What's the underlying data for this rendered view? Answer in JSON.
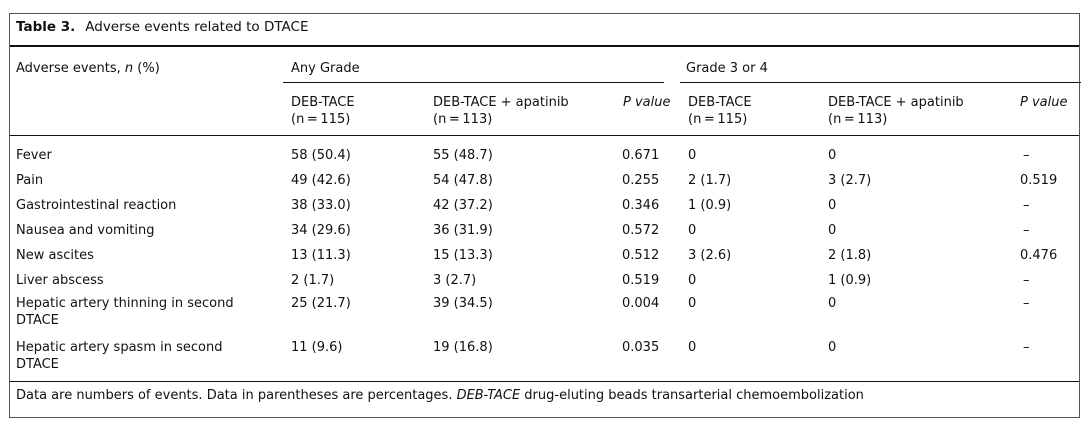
{
  "table": {
    "number": "Table 3.",
    "title": "Adverse events related to DTACE",
    "header": {
      "row_label": "Adverse events, ",
      "row_label_n": "n",
      "row_label_suffix": " (%)",
      "group_any": "Any Grade",
      "group_g34": "Grade 3 or 4",
      "col_deb": "DEB-TACE",
      "col_deb_n": "(n = 115)",
      "col_debap": "DEB-TACE + apatinib",
      "col_debap_n": "(n = 113)",
      "col_p": "P value"
    },
    "rows": [
      {
        "label": [
          "Fever"
        ],
        "any_deb": "58 (50.4)",
        "any_debap": "55 (48.7)",
        "any_p": "0.671",
        "g34_deb": "0",
        "g34_debap": "0",
        "g34_p": "–"
      },
      {
        "label": [
          "Pain"
        ],
        "any_deb": "49 (42.6)",
        "any_debap": "54 (47.8)",
        "any_p": "0.255",
        "g34_deb": "2 (1.7)",
        "g34_debap": "3 (2.7)",
        "g34_p": "0.519"
      },
      {
        "label": [
          "Gastrointestinal reaction"
        ],
        "any_deb": "38 (33.0)",
        "any_debap": "42 (37.2)",
        "any_p": "0.346",
        "g34_deb": "1 (0.9)",
        "g34_debap": "0",
        "g34_p": "–"
      },
      {
        "label": [
          "Nausea and vomiting"
        ],
        "any_deb": "34 (29.6)",
        "any_debap": "36 (31.9)",
        "any_p": "0.572",
        "g34_deb": "0",
        "g34_debap": "0",
        "g34_p": "–"
      },
      {
        "label": [
          "New ascites"
        ],
        "any_deb": "13 (11.3)",
        "any_debap": "15 (13.3)",
        "any_p": "0.512",
        "g34_deb": "3 (2.6)",
        "g34_debap": "2 (1.8)",
        "g34_p": "0.476"
      },
      {
        "label": [
          "Liver abscess"
        ],
        "any_deb": "2 (1.7)",
        "any_debap": "3 (2.7)",
        "any_p": "0.519",
        "g34_deb": "0",
        "g34_debap": "1 (0.9)",
        "g34_p": "–"
      },
      {
        "label": [
          "Hepatic artery thinning in second",
          "DTACE"
        ],
        "any_deb": "25 (21.7)",
        "any_debap": "39 (34.5)",
        "any_p": "0.004",
        "g34_deb": "0",
        "g34_debap": "0",
        "g34_p": "–"
      },
      {
        "label": [
          "Hepatic artery spasm in second",
          "DTACE"
        ],
        "any_deb": "11 (9.6)",
        "any_debap": "19 (16.8)",
        "any_p": "0.035",
        "g34_deb": "0",
        "g34_debap": "0",
        "g34_p": "–"
      }
    ],
    "footnote": {
      "text1": "Data are numbers of events. Data in parentheses are percentages. ",
      "abbr": "DEB-TACE",
      "text2": " drug-eluting beads transarterial chemoembolization"
    }
  }
}
